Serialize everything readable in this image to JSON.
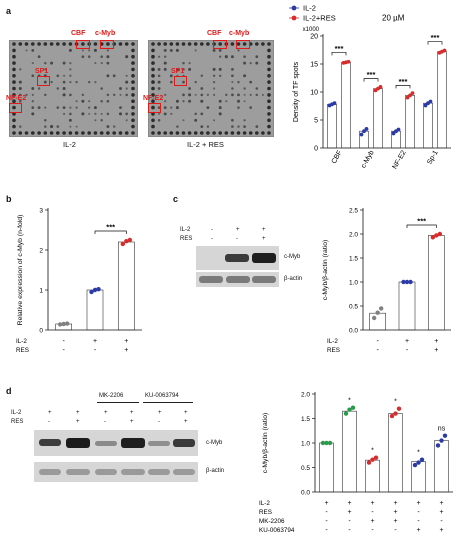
{
  "panels": {
    "a": "a",
    "b": "b",
    "c": "c",
    "d": "d"
  },
  "panel_a": {
    "array_left_caption": "IL-2",
    "array_right_caption": "IL-2 + RES",
    "spot_labels": [
      "CBF",
      "c-Myb",
      "SP1",
      "NF-E2"
    ],
    "colors": {
      "il2": "#2b3aa6",
      "res": "#d62c2c",
      "box": "#e01a1a"
    }
  },
  "chart_data": [
    {
      "id": "a",
      "type": "bar",
      "ylabel": "Density of TF spots",
      "yscale_note": "x1000",
      "ylim": [
        0,
        20
      ],
      "yticks": [
        0,
        5,
        10,
        15,
        20
      ],
      "categories": [
        "CBF",
        "c-Myb",
        "NF-E2",
        "Sp-1"
      ],
      "series": [
        {
          "name": "IL-2",
          "values": [
            7.8,
            3.0,
            3.0,
            8.0
          ],
          "points": [
            [
              7.6,
              7.8,
              8.0
            ],
            [
              2.4,
              3.0,
              3.4
            ],
            [
              2.6,
              3.0,
              3.3
            ],
            [
              7.6,
              8.0,
              8.3
            ]
          ]
        },
        {
          "name": "IL-2+RES",
          "values": [
            15.3,
            10.6,
            9.4,
            17.2
          ],
          "points": [
            [
              15.2,
              15.3,
              15.4
            ],
            [
              10.3,
              10.6,
              10.9
            ],
            [
              9.0,
              9.4,
              9.8
            ],
            [
              17.0,
              17.2,
              17.4
            ]
          ]
        }
      ],
      "legend_note": "20 µM",
      "significance": [
        "***",
        "***",
        "***",
        "***"
      ]
    },
    {
      "id": "b",
      "type": "bar",
      "ylabel": "Relative expression of c-Myb (n-fold)",
      "ylim": [
        0,
        3
      ],
      "yticks": [
        0,
        1,
        2,
        3
      ],
      "values": [
        0.15,
        1.0,
        2.2
      ],
      "points": [
        [
          0.14,
          0.15,
          0.16
        ],
        [
          0.95,
          1.0,
          1.02
        ],
        [
          2.15,
          2.22,
          2.25
        ]
      ],
      "point_colors": [
        "#808080",
        "#2b3aa6",
        "#d62c2c"
      ],
      "conditions": {
        "IL-2": [
          "-",
          "+",
          "+"
        ],
        "RES": [
          "-",
          "-",
          "+"
        ]
      },
      "significance": "***"
    },
    {
      "id": "c",
      "type": "bar",
      "ylabel": "c-Myb/β-actin (ratio)",
      "ylim": [
        0,
        2.5
      ],
      "yticks": [
        0.0,
        0.5,
        1.0,
        1.5,
        2.0,
        2.5
      ],
      "values": [
        0.35,
        1.0,
        1.97
      ],
      "points": [
        [
          0.25,
          0.36,
          0.45
        ],
        [
          1.0,
          1.0,
          1.0
        ],
        [
          1.93,
          1.97,
          2.0
        ]
      ],
      "point_colors": [
        "#808080",
        "#2b3aa6",
        "#d62c2c"
      ],
      "conditions": {
        "IL-2": [
          "-",
          "+",
          "+"
        ],
        "RES": [
          "-",
          "-",
          "+"
        ]
      },
      "significance": "***"
    },
    {
      "id": "d",
      "type": "bar",
      "ylabel": "c-Myb/β-actin (ratio)",
      "ylim": [
        0,
        2.0
      ],
      "yticks": [
        0.0,
        0.5,
        1.0,
        1.5,
        2.0
      ],
      "values": [
        1.0,
        1.65,
        0.65,
        1.6,
        0.62,
        1.05
      ],
      "points": [
        [
          1.0,
          1.0,
          1.0
        ],
        [
          1.6,
          1.68,
          1.72
        ],
        [
          0.6,
          0.66,
          0.7
        ],
        [
          1.55,
          1.6,
          1.7
        ],
        [
          0.55,
          0.6,
          0.66
        ],
        [
          0.95,
          1.05,
          1.15
        ]
      ],
      "point_colors": [
        "#2b9a4a",
        "#2b9a4a",
        "#d62c2c",
        "#d62c2c",
        "#2b3aa6",
        "#2b3aa6"
      ],
      "bar_labels": [
        "",
        "*",
        "*",
        "*",
        "*",
        "ns"
      ],
      "conditions": {
        "IL-2": [
          "+",
          "+",
          "+",
          "+",
          "+",
          "+"
        ],
        "RES": [
          "-",
          "+",
          "-",
          "+",
          "-",
          "+"
        ],
        "MK-2206": [
          "-",
          "-",
          "+",
          "+",
          "-",
          "-"
        ],
        "KU-0063794": [
          "-",
          "-",
          "-",
          "-",
          "+",
          "+"
        ]
      }
    }
  ],
  "blot_c": {
    "conditions": {
      "IL-2": [
        "-",
        "+",
        "+"
      ],
      "RES": [
        "-",
        "-",
        "+"
      ]
    },
    "band_labels": [
      "c-Myb",
      "β-actin"
    ]
  },
  "blot_d": {
    "group_labels": [
      "MK-2206",
      "KU-0063794"
    ],
    "conditions": {
      "IL-2": [
        "+",
        "+",
        "+",
        "+",
        "+",
        "+"
      ],
      "RES": [
        "-",
        "+",
        "-",
        "+",
        "-",
        "+"
      ]
    },
    "band_labels": [
      "c-Myb",
      "β-actin"
    ]
  },
  "condition_row_labels": {
    "il2": "IL-2",
    "res": "RES",
    "mk": "MK-2206",
    "ku": "KU-0063794"
  }
}
